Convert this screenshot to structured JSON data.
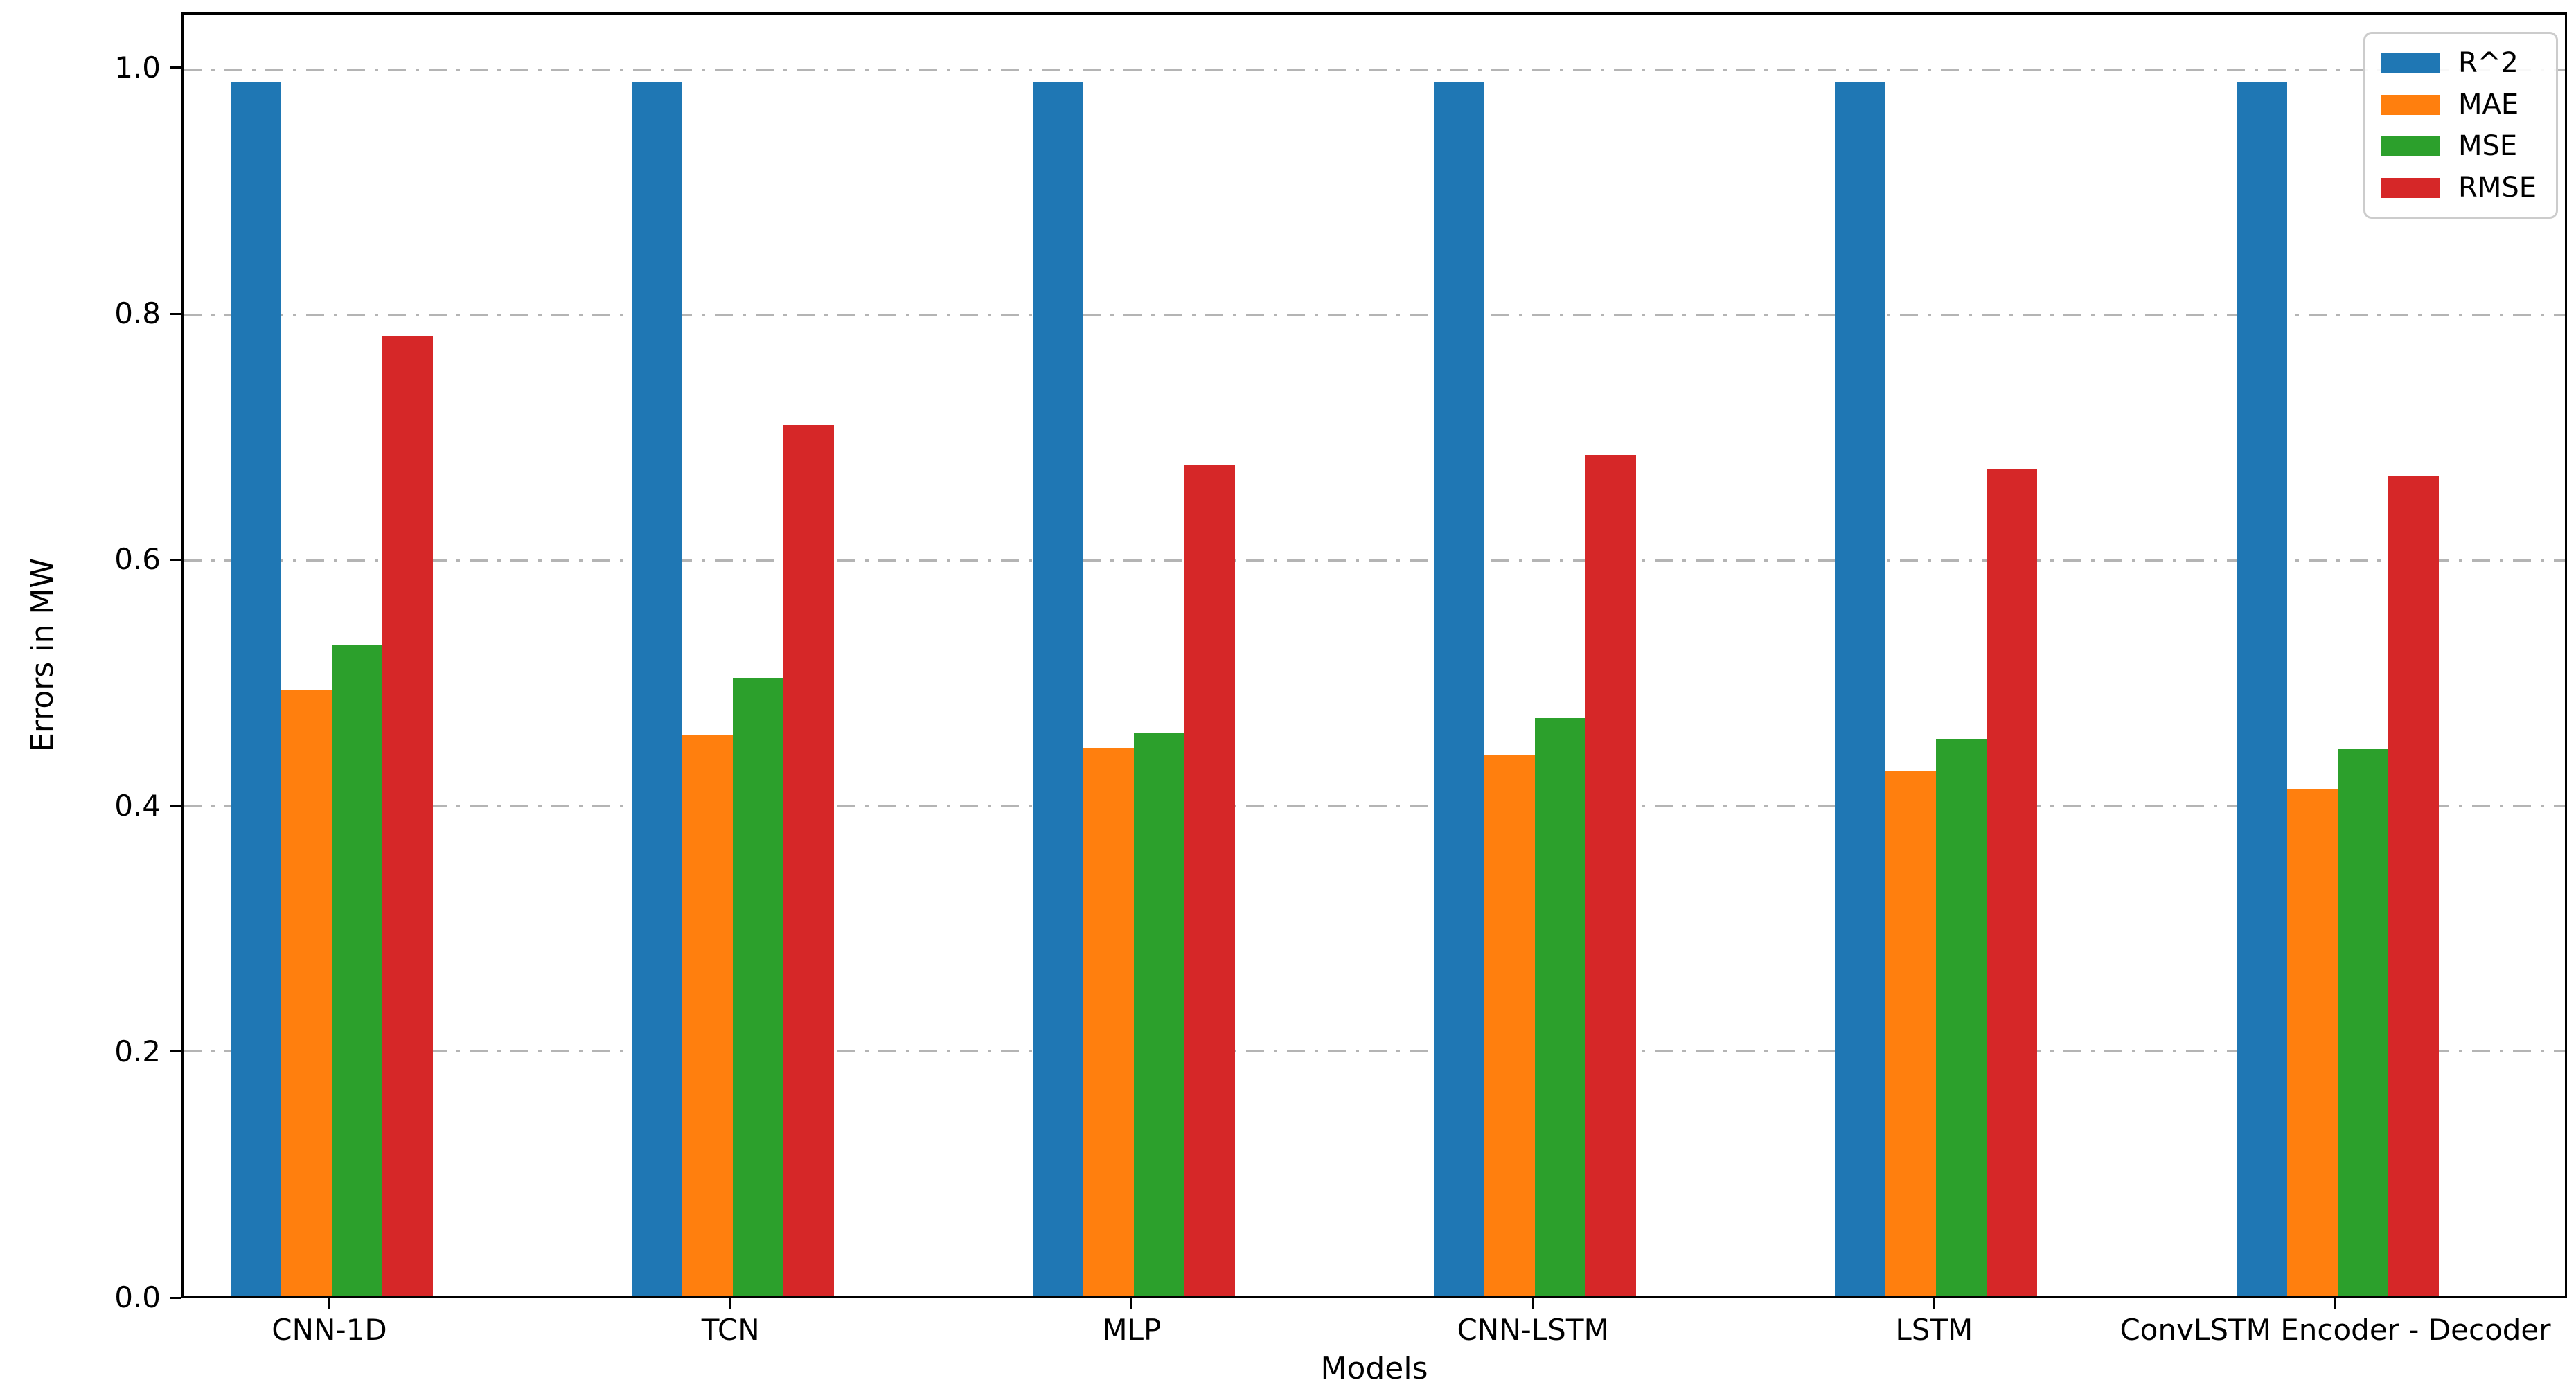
{
  "chart_data": {
    "type": "bar",
    "title": "",
    "xlabel": "Models",
    "ylabel": "Errors in MW",
    "categories": [
      "CNN-1D",
      "TCN",
      "MLP",
      "CNN-LSTM",
      "LSTM",
      "ConvLSTM Encoder - Decoder"
    ],
    "series": [
      {
        "name": "R^2",
        "color": "#1f77b4",
        "values": [
          0.99,
          0.99,
          0.99,
          0.99,
          0.99,
          0.99
        ]
      },
      {
        "name": "MAE",
        "color": "#ff7f0e",
        "values": [
          0.494,
          0.457,
          0.447,
          0.441,
          0.428,
          0.413
        ]
      },
      {
        "name": "MSE",
        "color": "#2ca02c",
        "values": [
          0.531,
          0.504,
          0.459,
          0.471,
          0.454,
          0.446
        ]
      },
      {
        "name": "RMSE",
        "color": "#d62728",
        "values": [
          0.783,
          0.71,
          0.678,
          0.686,
          0.674,
          0.668
        ]
      }
    ],
    "ylim": [
      0,
      1.045
    ],
    "yticks": [
      0.0,
      0.2,
      0.4,
      0.6,
      0.8,
      1.0
    ],
    "ytick_labels": [
      "0.0",
      "0.2",
      "0.4",
      "0.6",
      "0.8",
      "1.0"
    ],
    "grid": "horizontal-dash-dot",
    "legend_position": "upper-right",
    "colors": {
      "axis": "#000000",
      "grid": "#b4b4b4",
      "legend_border": "#cccccc",
      "background": "#ffffff"
    }
  }
}
